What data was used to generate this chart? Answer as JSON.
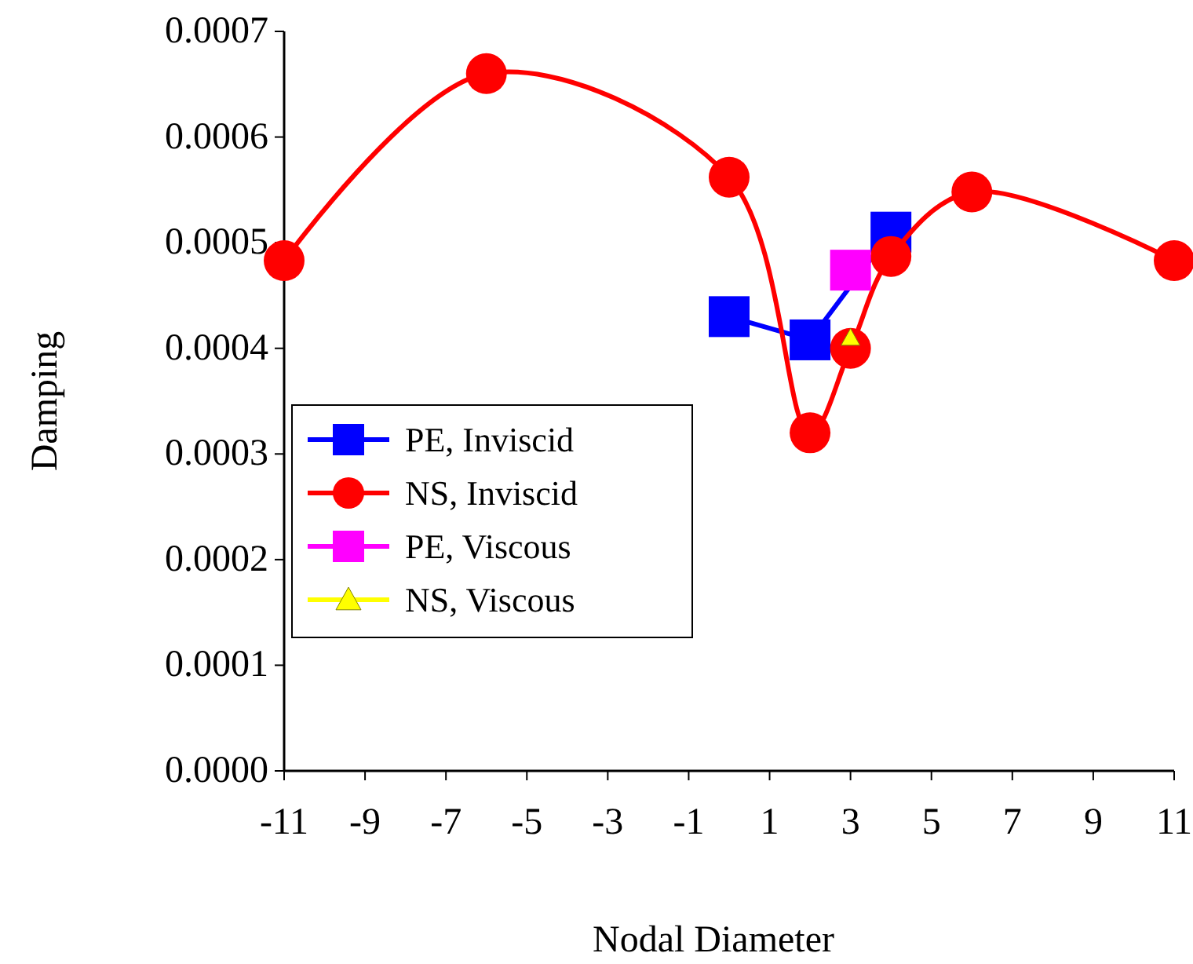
{
  "chart_data": {
    "type": "line",
    "xlabel": "Nodal Diameter",
    "ylabel": "Damping",
    "xlim": [
      -11,
      11
    ],
    "xticks": [
      -11,
      -9,
      -7,
      -5,
      -3,
      -1,
      1,
      3,
      5,
      7,
      9,
      11
    ],
    "ylim": [
      0,
      0.0007
    ],
    "yticks": [
      {
        "value": 0,
        "label": "0.0000"
      },
      {
        "value": 0.0001,
        "label": "0.0001"
      },
      {
        "value": 0.0002,
        "label": "0.0002"
      },
      {
        "value": 0.0003,
        "label": "0.0003"
      },
      {
        "value": 0.0004,
        "label": "0.0004"
      },
      {
        "value": 0.0005,
        "label": "0.0005"
      },
      {
        "value": 0.0006,
        "label": "0.0006"
      },
      {
        "value": 0.0007,
        "label": "0.0007"
      }
    ],
    "grid": false,
    "legend": "left",
    "line_style": "solid",
    "series": [
      {
        "name": "PE, Inviscid",
        "color": "#0000ff",
        "marker": "square",
        "x": [
          0,
          2,
          3,
          4
        ],
        "values": [
          0.00043,
          0.000408,
          null,
          0.00051
        ]
      },
      {
        "name": "NS, Inviscid",
        "color": "#ff0000",
        "marker": "circle",
        "x": [
          -11,
          -6,
          0,
          2,
          3,
          4,
          6,
          11
        ],
        "values": [
          0.000483,
          0.00066,
          0.000562,
          0.00032,
          0.0004,
          0.000487,
          0.000548,
          0.000483
        ]
      },
      {
        "name": "PE, Viscous",
        "color": "#ff00ff",
        "marker": "square",
        "x": [
          3
        ],
        "values": [
          0.000474
        ]
      },
      {
        "name": "NS, Viscous",
        "color": "#ffff00",
        "marker": "triangle",
        "x": [
          3
        ],
        "values": [
          0.00041
        ]
      }
    ]
  }
}
